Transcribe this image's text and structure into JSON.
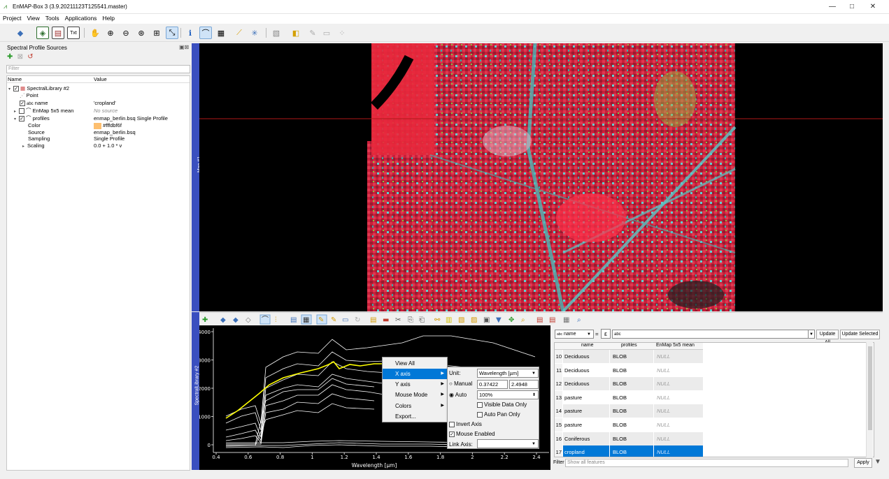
{
  "window": {
    "title": "EnMAP-Box 3 (3.9.20211123T125541.master)",
    "minimize": "—",
    "maximize": "□",
    "close": "✕"
  },
  "menubar": [
    "Project",
    "View",
    "Tools",
    "Applications",
    "Help"
  ],
  "left_panel": {
    "title": "Spectral Profile Sources",
    "filter_placeholder": "Filter",
    "columns": [
      "Name",
      "Value"
    ],
    "rows": [
      {
        "name": "SpectralLibrary #2",
        "value": ""
      },
      {
        "name": "Point",
        "value": ""
      },
      {
        "name": "name",
        "prefix": "abc",
        "value": "'cropland'"
      },
      {
        "name": "EnMap 5x5 mean",
        "value": "No source"
      },
      {
        "name": "profiles",
        "value": "enmap_berlin.bsq Single Profile"
      },
      {
        "name": "Color",
        "value": "#fffdbf6f"
      },
      {
        "name": "Source",
        "value": "enmap_berlin.bsq"
      },
      {
        "name": "Sampling",
        "value": "Single Profile"
      },
      {
        "name": "Scaling",
        "value": "0.0 + 1.0 * v"
      }
    ]
  },
  "map_dock": {
    "label": "Map #1"
  },
  "speclib_dock": {
    "label": "SpectralLibrary #2"
  },
  "plot": {
    "yticks": [
      "4000",
      "3000",
      "2000",
      "1000",
      "0"
    ],
    "xticks": [
      "0.4",
      "0.6",
      "0.8",
      "1",
      "1.2",
      "1.4",
      "1.6",
      "1.8",
      "2",
      "2.2",
      "2.4"
    ],
    "xlabel": "Wavelength [µm]"
  },
  "context_menu": {
    "items": [
      "View All",
      "X axis",
      "Y axis",
      "Mouse Mode",
      "Colors",
      "Export..."
    ],
    "xaxis_panel": {
      "unit_label": "Unit:",
      "unit_value": "Wavelength [µm]",
      "manual_label": "Manual",
      "manual_min": "0.37422",
      "manual_max": "2.4948",
      "auto_label": "Auto",
      "auto_value": "100%",
      "visible_data_only": "Visible Data Only",
      "auto_pan_only": "Auto Pan Only",
      "invert_axis": "Invert Axis",
      "mouse_enabled": "Mouse Enabled",
      "link_axis": "Link Axis:"
    }
  },
  "attribute_table": {
    "field_select": "name",
    "field_prefix": "abc",
    "operator": "=",
    "expression_symbol": "ε",
    "value_input": "abc",
    "update_all": "Update All",
    "update_selected": "Update Selected",
    "columns": [
      "name",
      "profiles",
      "EnMap 5x5 mean"
    ],
    "rows": [
      {
        "id": "10",
        "name": "Deciduous",
        "profiles": "BLOB",
        "mean": "NULL"
      },
      {
        "id": "11",
        "name": "Deciduous",
        "profiles": "BLOB",
        "mean": "NULL"
      },
      {
        "id": "12",
        "name": "Deciduous",
        "profiles": "BLOB",
        "mean": "NULL"
      },
      {
        "id": "13",
        "name": "pasture",
        "profiles": "BLOB",
        "mean": "NULL"
      },
      {
        "id": "14",
        "name": "pasture",
        "profiles": "BLOB",
        "mean": "NULL"
      },
      {
        "id": "15",
        "name": "pasture",
        "profiles": "BLOB",
        "mean": "NULL"
      },
      {
        "id": "16",
        "name": "Coniferous",
        "profiles": "BLOB",
        "mean": "NULL"
      },
      {
        "id": "17",
        "name": "cropland",
        "profiles": "BLOB",
        "mean": "NULL"
      }
    ],
    "filter_label": "Filter",
    "filter_value": "Show all features",
    "apply": "Apply"
  },
  "colors": {
    "accent": "#0078d7",
    "dock_side": "#3a4fbf",
    "profile_highlight": "#ffff00"
  }
}
